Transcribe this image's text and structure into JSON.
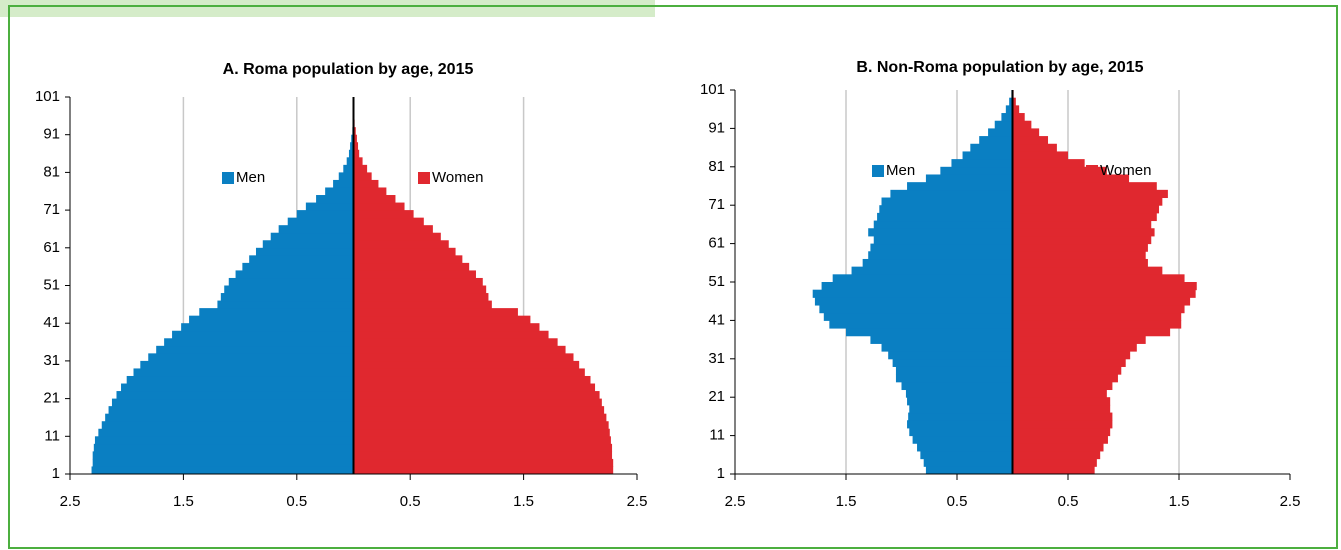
{
  "chart_data": [
    {
      "type": "pyramid",
      "title": "A. Roma population by age,  2015",
      "ages": [
        1,
        3,
        5,
        7,
        9,
        11,
        13,
        15,
        17,
        19,
        21,
        23,
        25,
        27,
        29,
        31,
        33,
        35,
        37,
        39,
        41,
        43,
        45,
        47,
        49,
        51,
        53,
        55,
        57,
        59,
        61,
        63,
        65,
        67,
        69,
        71,
        73,
        75,
        77,
        79,
        81,
        83,
        85,
        87,
        89,
        91,
        93,
        95,
        97,
        99
      ],
      "series": [
        {
          "name": "Men",
          "color": "#0a7fc2",
          "values": [
            -2.31,
            -2.3,
            -2.3,
            -2.29,
            -2.28,
            -2.25,
            -2.22,
            -2.19,
            -2.16,
            -2.13,
            -2.09,
            -2.05,
            -2.0,
            -1.94,
            -1.88,
            -1.81,
            -1.74,
            -1.67,
            -1.6,
            -1.52,
            -1.45,
            -1.36,
            -1.2,
            -1.17,
            -1.14,
            -1.1,
            -1.04,
            -0.98,
            -0.92,
            -0.86,
            -0.8,
            -0.73,
            -0.66,
            -0.58,
            -0.5,
            -0.42,
            -0.33,
            -0.25,
            -0.18,
            -0.13,
            -0.09,
            -0.06,
            -0.04,
            -0.03,
            -0.02,
            -0.01,
            0,
            0,
            0,
            0
          ]
        },
        {
          "name": "Women",
          "color": "#e0282f",
          "values": [
            2.29,
            2.29,
            2.28,
            2.28,
            2.27,
            2.26,
            2.25,
            2.23,
            2.21,
            2.19,
            2.17,
            2.13,
            2.09,
            2.04,
            1.99,
            1.94,
            1.87,
            1.8,
            1.72,
            1.64,
            1.56,
            1.45,
            1.22,
            1.19,
            1.17,
            1.14,
            1.08,
            1.02,
            0.96,
            0.9,
            0.84,
            0.77,
            0.7,
            0.62,
            0.53,
            0.45,
            0.37,
            0.29,
            0.22,
            0.16,
            0.12,
            0.08,
            0.05,
            0.04,
            0.03,
            0.02,
            0.01,
            0,
            0,
            0
          ]
        }
      ],
      "xlim": [
        -2.5,
        2.5
      ],
      "xticks": [
        {
          "value": -2.5,
          "label": "2.5"
        },
        {
          "value": -1.5,
          "label": "1.5"
        },
        {
          "value": -0.5,
          "label": "0.5"
        },
        0.5,
        1.5,
        2.5
      ],
      "ylim": [
        1,
        101
      ],
      "yticks": [
        1,
        11,
        21,
        31,
        41,
        51,
        61,
        71,
        81,
        91,
        101
      ],
      "grid": true
    },
    {
      "type": "pyramid",
      "title": "B. Non-Roma population by age, 2015",
      "ages": [
        1,
        3,
        5,
        7,
        9,
        11,
        13,
        15,
        17,
        19,
        21,
        23,
        25,
        27,
        29,
        31,
        33,
        35,
        37,
        39,
        41,
        43,
        45,
        47,
        49,
        51,
        53,
        55,
        57,
        59,
        61,
        63,
        65,
        67,
        69,
        71,
        73,
        75,
        77,
        79,
        81,
        83,
        85,
        87,
        89,
        91,
        93,
        95,
        97,
        99
      ],
      "series": [
        {
          "name": "Men",
          "color": "#0a7fc2",
          "values": [
            -0.78,
            -0.8,
            -0.83,
            -0.86,
            -0.9,
            -0.93,
            -0.95,
            -0.94,
            -0.93,
            -0.95,
            -0.96,
            -1.0,
            -1.05,
            -1.05,
            -1.08,
            -1.12,
            -1.18,
            -1.28,
            -1.5,
            -1.65,
            -1.7,
            -1.74,
            -1.78,
            -1.8,
            -1.72,
            -1.62,
            -1.45,
            -1.35,
            -1.3,
            -1.28,
            -1.25,
            -1.3,
            -1.25,
            -1.22,
            -1.2,
            -1.18,
            -1.1,
            -0.95,
            -0.78,
            -0.65,
            -0.55,
            -0.45,
            -0.38,
            -0.3,
            -0.22,
            -0.16,
            -0.1,
            -0.06,
            -0.03,
            -0.01
          ]
        },
        {
          "name": "Women",
          "color": "#e0282f",
          "values": [
            0.74,
            0.76,
            0.79,
            0.82,
            0.86,
            0.88,
            0.9,
            0.9,
            0.88,
            0.88,
            0.85,
            0.9,
            0.95,
            0.98,
            1.02,
            1.06,
            1.12,
            1.2,
            1.42,
            1.52,
            1.52,
            1.55,
            1.6,
            1.65,
            1.66,
            1.55,
            1.35,
            1.22,
            1.2,
            1.22,
            1.25,
            1.28,
            1.25,
            1.3,
            1.32,
            1.35,
            1.4,
            1.3,
            1.05,
            0.85,
            0.65,
            0.5,
            0.4,
            0.32,
            0.24,
            0.17,
            0.11,
            0.06,
            0.03,
            0.01
          ]
        }
      ],
      "xlim": [
        -2.5,
        2.5
      ],
      "xticks": [
        {
          "value": -2.5,
          "label": "2.5"
        },
        {
          "value": -1.5,
          "label": "1.5"
        },
        {
          "value": -0.5,
          "label": "0.5"
        },
        0.5,
        1.5,
        2.5
      ],
      "ylim": [
        1,
        101
      ],
      "yticks": [
        1,
        11,
        21,
        31,
        41,
        51,
        61,
        71,
        81,
        91,
        101
      ],
      "grid": true
    }
  ]
}
